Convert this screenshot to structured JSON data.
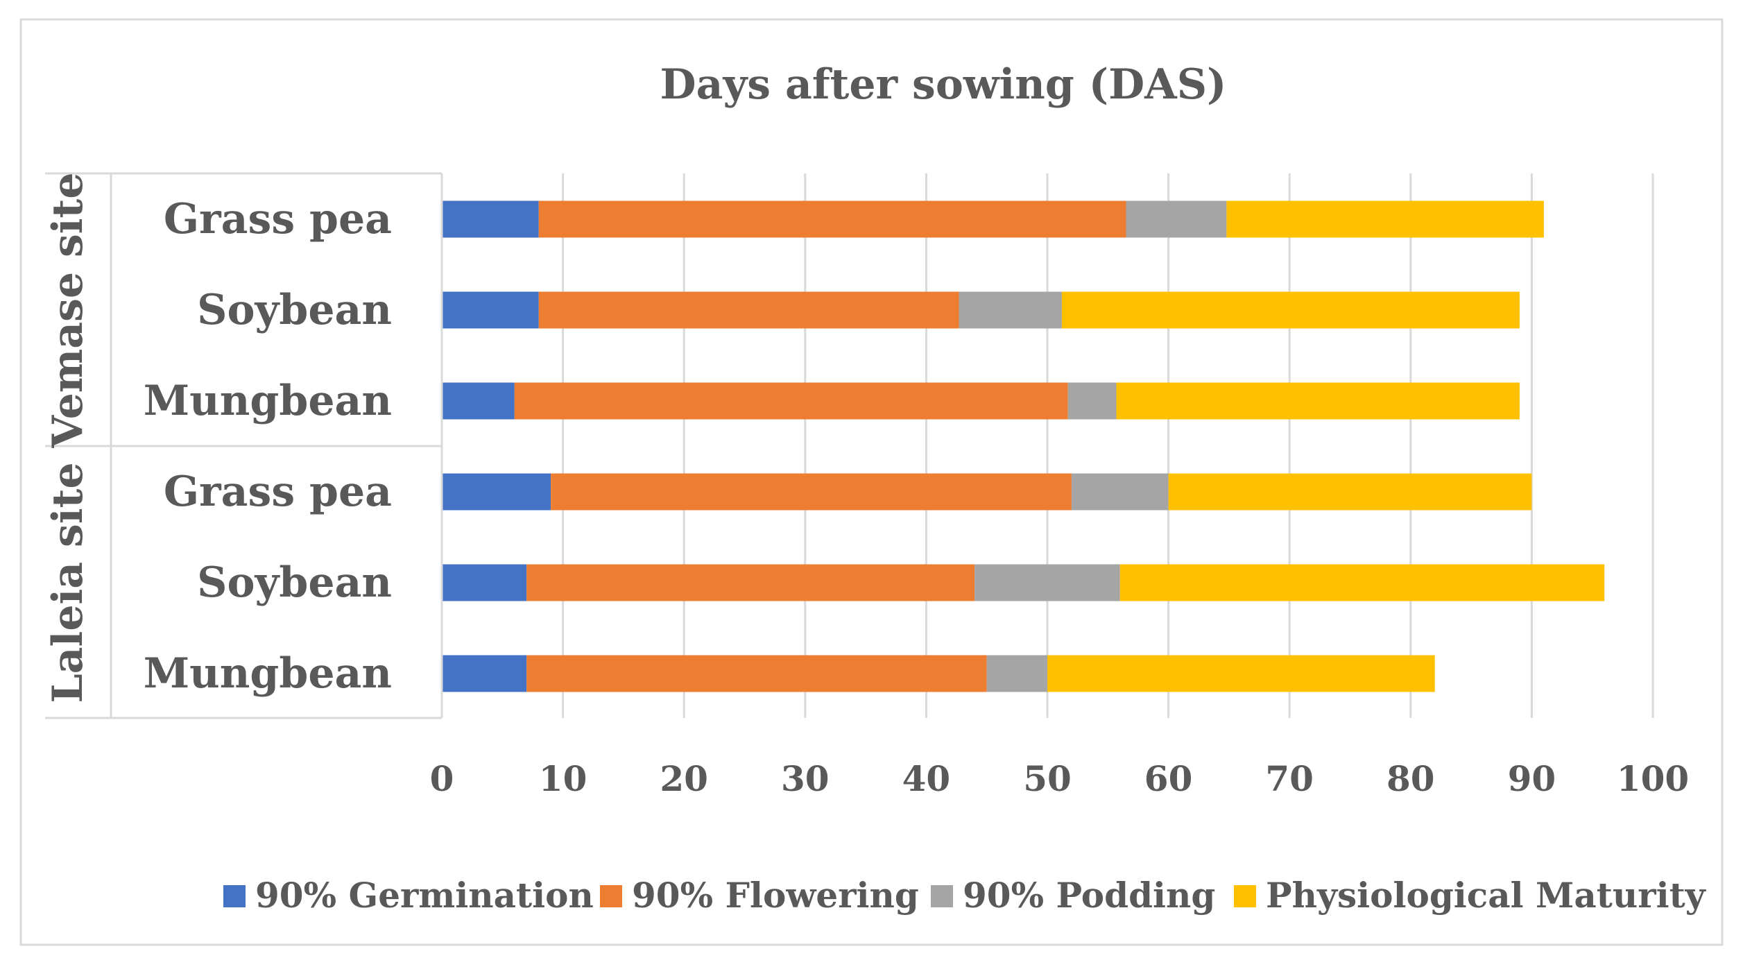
{
  "chart_data": {
    "type": "bar",
    "orientation": "horizontal",
    "stacked": true,
    "title": "Days after sowing (DAS)",
    "xlabel": "",
    "ylabel": "",
    "xlim": [
      0,
      100
    ],
    "x_ticks": [
      "0",
      "10",
      "20",
      "30",
      "40",
      "50",
      "60",
      "70",
      "80",
      "90",
      "100"
    ],
    "grid": true,
    "legend_position": "bottom",
    "groups": [
      {
        "name": "Vemase site",
        "categories": [
          "Grass pea",
          "Soybean",
          "Mungbean"
        ]
      },
      {
        "name": "Laleia site",
        "categories": [
          "Grass pea",
          "Soybean",
          "Mungbean"
        ]
      }
    ],
    "categories": [
      "Grass pea",
      "Soybean",
      "Mungbean",
      "Grass pea",
      "Soybean",
      "Mungbean"
    ],
    "series": [
      {
        "name": "90% Germination",
        "color": "#4472C4",
        "values": [
          8,
          8,
          6,
          9,
          7,
          7
        ]
      },
      {
        "name": "90% Flowering",
        "color": "#ED7D31",
        "values": [
          48.5,
          34.7,
          45.7,
          43,
          37,
          38
        ]
      },
      {
        "name": "90% Podding",
        "color": "#A5A5A5",
        "values": [
          8.3,
          8.5,
          4,
          8,
          12,
          5
        ]
      },
      {
        "name": "Physiological Maturity",
        "color": "#FFC000",
        "values": [
          26.2,
          37.8,
          33.3,
          30,
          40,
          32
        ]
      }
    ]
  }
}
